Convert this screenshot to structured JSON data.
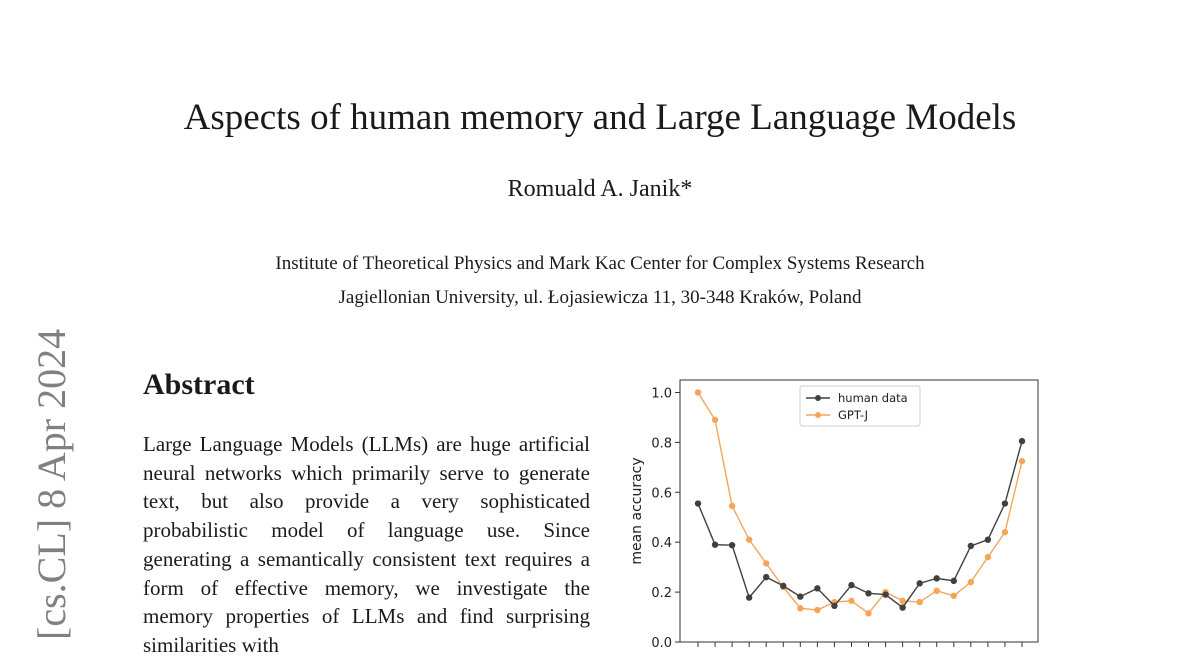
{
  "paper": {
    "title": "Aspects of human memory and Large Language Models",
    "author": "Romuald A. Janik*",
    "affiliation_line1": "Institute of Theoretical Physics and Mark Kac Center for Complex Systems Research",
    "affiliation_line2": "Jagiellonian University, ul. Łojasiewicza 11, 30-348 Kraków, Poland",
    "arxiv_stamp": "[cs.CL]  8 Apr 2024",
    "abstract_heading": "Abstract",
    "abstract_text": "Large Language Models (LLMs) are huge artificial neural networks which primarily serve to generate text, but also provide a very sophisticated probabilistic model of language use. Since generating a semantically consistent text requires a form of effective memory, we investigate the memory properties of LLMs and find surprising similarities with"
  },
  "chart_data": {
    "type": "line",
    "ylabel": "mean accuracy",
    "xlabel": "",
    "ylim": [
      0.0,
      1.05
    ],
    "yticks": [
      "0.0",
      "0.2",
      "0.4",
      "0.6",
      "0.8",
      "1.0"
    ],
    "legend_position": "top-center",
    "x": [
      1,
      2,
      3,
      4,
      5,
      6,
      7,
      8,
      9,
      10,
      11,
      12,
      13,
      14,
      15,
      16,
      17,
      18,
      19,
      20
    ],
    "series": [
      {
        "name": "human data",
        "color": "#404040",
        "values": [
          0.555,
          0.39,
          0.388,
          0.178,
          0.26,
          0.225,
          0.182,
          0.215,
          0.145,
          0.228,
          0.195,
          0.19,
          0.138,
          0.235,
          0.255,
          0.245,
          0.385,
          0.41,
          0.555,
          0.805
        ]
      },
      {
        "name": "GPT-J",
        "color": "#f5a55a",
        "values": [
          1.0,
          0.89,
          0.545,
          0.41,
          0.315,
          0.22,
          0.135,
          0.128,
          0.16,
          0.165,
          0.115,
          0.2,
          0.165,
          0.16,
          0.205,
          0.185,
          0.24,
          0.34,
          0.44,
          0.725
        ]
      }
    ]
  }
}
